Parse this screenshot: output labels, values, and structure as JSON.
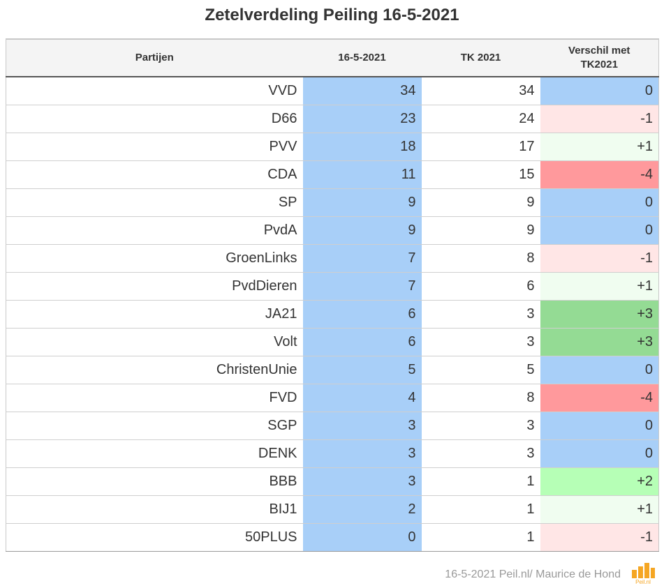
{
  "title": "Zetelverdeling Peiling 16-5-2021",
  "columns": {
    "party": "Partijen",
    "poll": "16-5-2021",
    "tk": "TK 2021",
    "diff_line1": "Verschil met",
    "diff_line2": "TK2021"
  },
  "colors": {
    "poll_bg": "#a8cff8",
    "diff_zero": "#a8cff8",
    "diff_minus1": "#ffe6e6",
    "diff_minus4": "#ff999c",
    "diff_plus1": "#f0fdf0",
    "diff_plus2": "#b6ffb6",
    "diff_plus3": "#94db94"
  },
  "chart_data": {
    "type": "table",
    "title": "Zetelverdeling Peiling 16-5-2021",
    "headers": [
      "Partijen",
      "16-5-2021",
      "TK 2021",
      "Verschil met TK2021"
    ],
    "rows": [
      {
        "party": "VVD",
        "poll": 34,
        "tk": 34,
        "diff": "0"
      },
      {
        "party": "D66",
        "poll": 23,
        "tk": 24,
        "diff": "-1"
      },
      {
        "party": "PVV",
        "poll": 18,
        "tk": 17,
        "diff": "+1"
      },
      {
        "party": "CDA",
        "poll": 11,
        "tk": 15,
        "diff": "-4"
      },
      {
        "party": "SP",
        "poll": 9,
        "tk": 9,
        "diff": "0"
      },
      {
        "party": "PvdA",
        "poll": 9,
        "tk": 9,
        "diff": "0"
      },
      {
        "party": "GroenLinks",
        "poll": 7,
        "tk": 8,
        "diff": "-1"
      },
      {
        "party": "PvdDieren",
        "poll": 7,
        "tk": 6,
        "diff": "+1"
      },
      {
        "party": "JA21",
        "poll": 6,
        "tk": 3,
        "diff": "+3"
      },
      {
        "party": "Volt",
        "poll": 6,
        "tk": 3,
        "diff": "+3"
      },
      {
        "party": "ChristenUnie",
        "poll": 5,
        "tk": 5,
        "diff": "0"
      },
      {
        "party": "FVD",
        "poll": 4,
        "tk": 8,
        "diff": "-4"
      },
      {
        "party": "SGP",
        "poll": 3,
        "tk": 3,
        "diff": "0"
      },
      {
        "party": "DENK",
        "poll": 3,
        "tk": 3,
        "diff": "0"
      },
      {
        "party": "BBB",
        "poll": 3,
        "tk": 1,
        "diff": "+2"
      },
      {
        "party": "BIJ1",
        "poll": 2,
        "tk": 1,
        "diff": "+1"
      },
      {
        "party": "50PLUS",
        "poll": 0,
        "tk": 1,
        "diff": "-1"
      }
    ]
  },
  "footer": {
    "credit": "16-5-2021 Peil.nl/ Maurice de Hond",
    "logo_text": "Peil.nl",
    "logo_color": "#f5a623"
  }
}
